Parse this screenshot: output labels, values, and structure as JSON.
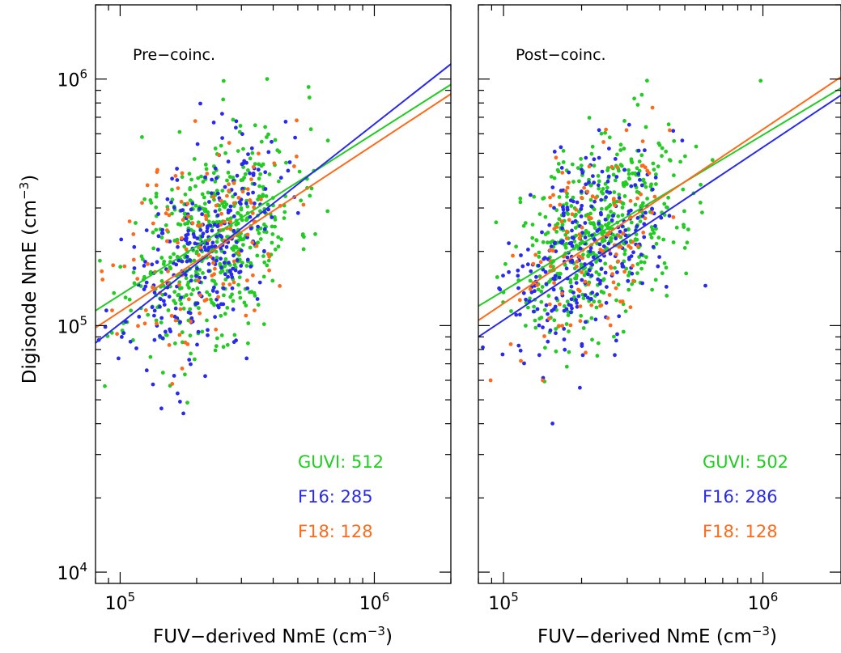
{
  "figure": {
    "ylabel_main": "Digisonde NmE (cm",
    "ylabel_exp": "−3",
    "ylabel_close": ")",
    "xlabel_main": "FUV−derived NmE (cm",
    "xlabel_exp": "−3",
    "xlabel_close": ")"
  },
  "chart_data": [
    {
      "type": "scatter",
      "title": "Pre−coinc.",
      "xscale": "log",
      "yscale": "log",
      "xlim": [
        80000,
        2000000
      ],
      "ylim": [
        9000,
        2000000
      ],
      "x_ticks": [
        {
          "base": "10",
          "exp": "5",
          "value": 100000
        },
        {
          "base": "10",
          "exp": "6",
          "value": 1000000
        }
      ],
      "y_ticks": [
        {
          "base": "10",
          "exp": "4",
          "value": 10000
        },
        {
          "base": "10",
          "exp": "5",
          "value": 100000
        },
        {
          "base": "10",
          "exp": "6",
          "value": 1000000
        }
      ],
      "legend_position": "bottom-right",
      "series": [
        {
          "name": "GUVI",
          "count": "512",
          "color": "#22cc22",
          "fit": {
            "x": [
              80000,
              2000000
            ],
            "y": [
              115000,
              950000
            ]
          },
          "n": 512,
          "center": [
            235000,
            225000
          ],
          "sx": 0.16,
          "sy": 0.2,
          "seed": 11
        },
        {
          "name": "F16",
          "count": "285",
          "color": "#2a2aee",
          "fit": {
            "x": [
              80000,
              2000000
            ],
            "y": [
              85000,
              1150000
            ]
          },
          "n": 285,
          "center": [
            210000,
            195000
          ],
          "sx": 0.15,
          "sy": 0.2,
          "seed": 23
        },
        {
          "name": "F18",
          "count": "128",
          "color": "#ff6a1a",
          "fit": {
            "x": [
              80000,
              2000000
            ],
            "y": [
              98000,
              870000
            ]
          },
          "n": 128,
          "center": [
            215000,
            220000
          ],
          "sx": 0.17,
          "sy": 0.21,
          "seed": 37
        }
      ]
    },
    {
      "type": "scatter",
      "title": "Post−coinc.",
      "xscale": "log",
      "yscale": "log",
      "xlim": [
        80000,
        2000000
      ],
      "ylim": [
        9000,
        2000000
      ],
      "x_ticks": [
        {
          "base": "10",
          "exp": "5",
          "value": 100000
        },
        {
          "base": "10",
          "exp": "6",
          "value": 1000000
        }
      ],
      "y_ticks": [
        {
          "base": "10",
          "exp": "4",
          "value": 10000
        },
        {
          "base": "10",
          "exp": "5",
          "value": 100000
        },
        {
          "base": "10",
          "exp": "6",
          "value": 1000000
        }
      ],
      "legend_position": "bottom-right",
      "series": [
        {
          "name": "GUVI",
          "count": "502",
          "color": "#22cc22",
          "fit": {
            "x": [
              80000,
              2000000
            ],
            "y": [
              120000,
              920000
            ]
          },
          "n": 502,
          "center": [
            240000,
            235000
          ],
          "sx": 0.16,
          "sy": 0.19,
          "seed": 51
        },
        {
          "name": "F16",
          "count": "286",
          "color": "#2a2aee",
          "fit": {
            "x": [
              80000,
              2000000
            ],
            "y": [
              90000,
              860000
            ]
          },
          "n": 286,
          "center": [
            200000,
            185000
          ],
          "sx": 0.14,
          "sy": 0.19,
          "seed": 67
        },
        {
          "name": "F18",
          "count": "128",
          "color": "#ff6a1a",
          "fit": {
            "x": [
              80000,
              2000000
            ],
            "y": [
              105000,
              1020000
            ]
          },
          "n": 128,
          "center": [
            215000,
            230000
          ],
          "sx": 0.15,
          "sy": 0.19,
          "seed": 79
        }
      ]
    }
  ]
}
